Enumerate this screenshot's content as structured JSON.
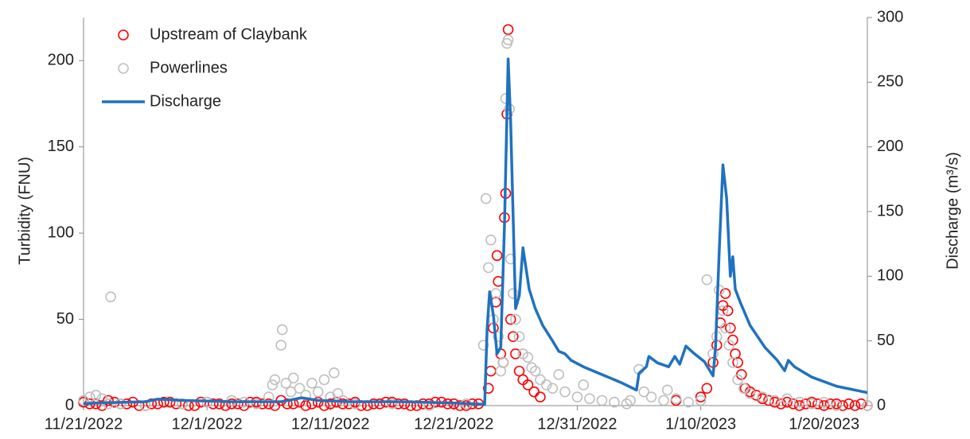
{
  "chart_data": {
    "type": "scatter",
    "y_label": "Turbidity (FNU)",
    "y2_label": "Discharge (m³/s)",
    "xlim": [
      0,
      63.5
    ],
    "xticks": [
      {
        "value": 0,
        "label": "11/21/2022"
      },
      {
        "value": 10,
        "label": "12/1/2022"
      },
      {
        "value": 20,
        "label": "12/11/2022"
      },
      {
        "value": 30,
        "label": "12/21/2022"
      },
      {
        "value": 40,
        "label": "12/31/2022"
      },
      {
        "value": 50,
        "label": "1/10/2023"
      },
      {
        "value": 60,
        "label": "1/20/2023"
      }
    ],
    "ylim": [
      0,
      225
    ],
    "yticks": [
      0,
      50,
      100,
      150,
      200
    ],
    "y2lim": [
      0,
      300
    ],
    "y2ticks": [
      0,
      50,
      100,
      150,
      200,
      250,
      300
    ],
    "grid": false,
    "legend": "upper left",
    "series": [
      {
        "name": "Upstream of Claybank",
        "color": "#ff0000",
        "type": "scatter",
        "x": [
          0,
          1,
          2,
          3,
          4,
          5,
          6,
          7,
          8,
          9,
          10,
          11,
          12,
          13,
          14,
          15,
          16,
          17,
          18,
          19,
          20,
          21,
          22,
          23,
          24,
          25,
          26,
          27,
          28,
          29,
          30,
          31,
          32,
          0.5,
          1.5,
          2.5,
          3.5,
          4.5,
          5.5,
          6.5,
          7.5,
          8.5,
          9.5,
          10.5,
          11.5,
          12.5,
          13.5,
          14.5,
          15.5,
          16.5,
          17.5,
          18.5,
          19.5,
          20.5,
          21.5,
          22.5,
          23.5,
          24.5,
          25.5,
          26.5,
          27.5,
          28.5,
          29.5,
          30.5,
          31.5,
          32.8,
          33,
          33.2,
          33.4,
          33.5,
          33.6,
          33.8,
          34,
          34.1,
          34.2,
          34.3,
          34.4,
          34.6,
          34.8,
          35,
          35.3,
          35.6,
          36,
          36.5,
          37,
          48,
          50,
          50.5,
          51,
          51.3,
          51.6,
          51.8,
          52,
          52.2,
          52.4,
          52.6,
          52.8,
          53,
          53.3,
          53.6,
          54,
          54.5,
          55,
          55.5,
          56,
          56.5,
          57,
          57.5,
          58,
          58.5,
          59,
          59.5,
          60,
          60.5,
          61,
          61.5,
          62,
          62.5,
          63,
          63.5
        ],
        "values": [
          2,
          1,
          3,
          1,
          2,
          0,
          1,
          2,
          1,
          0,
          2,
          1,
          1,
          0,
          2,
          1,
          3,
          1,
          0,
          2,
          1,
          1,
          2,
          0,
          1,
          2,
          1,
          0,
          1,
          2,
          1,
          0,
          1,
          1,
          0,
          2,
          1,
          0,
          1,
          2,
          1,
          0,
          2,
          1,
          0,
          1,
          2,
          1,
          0,
          1,
          2,
          1,
          0,
          2,
          1,
          0,
          1,
          2,
          1,
          0,
          1,
          2,
          1,
          0,
          1,
          10,
          20,
          45,
          60,
          87,
          72,
          30,
          25,
          109,
          123,
          169,
          218,
          50,
          40,
          30,
          20,
          15,
          12,
          8,
          5,
          3,
          5,
          10,
          25,
          35,
          48,
          58,
          65,
          55,
          45,
          38,
          30,
          25,
          18,
          10,
          8,
          6,
          4,
          3,
          2,
          1,
          2,
          1,
          0,
          1,
          2,
          1,
          0,
          1,
          1,
          0,
          1,
          0,
          1,
          0
        ]
      },
      {
        "name": "Powerlines",
        "color": "#bfbfbf",
        "type": "scatter",
        "x": [
          0,
          0.5,
          1,
          1.5,
          2,
          2.2,
          3,
          5,
          8,
          10,
          12,
          13,
          14,
          15,
          15.3,
          15.5,
          16,
          16.1,
          16.4,
          16.8,
          17,
          17.5,
          18,
          18.5,
          19,
          19.5,
          20,
          20.3,
          20.6,
          21,
          22,
          25,
          28,
          31,
          32.4,
          32.6,
          32.8,
          33,
          33.2,
          33.4,
          33.6,
          33.8,
          34,
          34.2,
          34.3,
          34.4,
          34.5,
          34.6,
          34.8,
          35,
          35.3,
          35.6,
          36,
          36.3,
          36.6,
          37,
          37.5,
          38,
          38.5,
          39,
          40,
          40.5,
          41,
          42,
          43,
          44,
          44.3,
          45,
          45.4,
          46,
          47,
          47.3,
          48,
          49,
          50,
          50.5,
          51,
          51.3,
          51.5,
          51.8,
          52,
          52.3,
          52.6,
          53,
          53.5,
          54,
          55,
          56,
          57,
          58,
          59,
          60,
          61,
          63.5
        ],
        "values": [
          3,
          5,
          6,
          4,
          1,
          63,
          1,
          0,
          1,
          2,
          3,
          2,
          1,
          5,
          12,
          15,
          35,
          44,
          13,
          8,
          16,
          10,
          6,
          13,
          8,
          15,
          5,
          19,
          7,
          3,
          1,
          1,
          0,
          1,
          35,
          120,
          80,
          96,
          50,
          65,
          40,
          20,
          25,
          178,
          210,
          212,
          172,
          85,
          65,
          50,
          40,
          30,
          28,
          22,
          20,
          15,
          12,
          10,
          18,
          8,
          5,
          12,
          4,
          3,
          2,
          1,
          3,
          21,
          8,
          5,
          3,
          9,
          4,
          2,
          3,
          73,
          30,
          40,
          67,
          55,
          45,
          35,
          25,
          15,
          10,
          7,
          5,
          3,
          4,
          2,
          1,
          2,
          0,
          0
        ]
      },
      {
        "name": "Discharge",
        "color": "#1f72c0",
        "type": "line",
        "axis": "y2",
        "x": [
          0,
          1,
          5,
          6,
          8,
          12,
          16,
          17.7,
          19,
          21.6,
          26,
          30,
          32.5,
          32.7,
          32.9,
          33.2,
          33.5,
          33.8,
          34.1,
          34.4,
          34.6,
          35,
          35.3,
          35.6,
          36.1,
          36.6,
          37.2,
          38,
          38.5,
          39,
          39.5,
          40.5,
          42,
          43.5,
          44.8,
          45,
          45.6,
          45.8,
          46.5,
          47.4,
          47.9,
          48.3,
          48.8,
          49.5,
          50.3,
          51,
          51.2,
          51.5,
          51.8,
          52.1,
          52.4,
          52.6,
          52.8,
          53.2,
          54,
          55.2,
          56.2,
          56.8,
          57.1,
          57.6,
          59,
          61,
          63.5
        ],
        "values": [
          1.5,
          2,
          3,
          5,
          4,
          3,
          3,
          6,
          4,
          3,
          3,
          2,
          1,
          60,
          88,
          70,
          40,
          45,
          140,
          268,
          220,
          75,
          85,
          122,
          90,
          75,
          62,
          50,
          42,
          40,
          35,
          30,
          24,
          18,
          12,
          25,
          30,
          38,
          33,
          30,
          38,
          32,
          46,
          40,
          34,
          23,
          45,
          120,
          186,
          160,
          100,
          115,
          90,
          80,
          62,
          45,
          35,
          27,
          35,
          30,
          22,
          15,
          10
        ]
      }
    ]
  }
}
